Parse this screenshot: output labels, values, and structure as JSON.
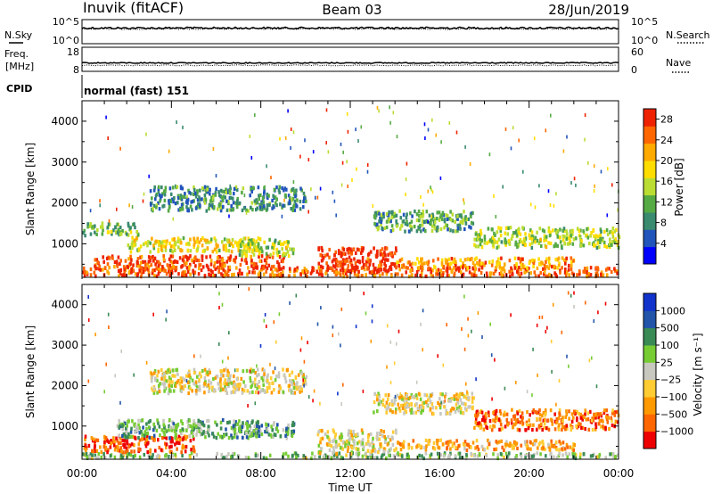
{
  "header": {
    "station": "Inuvik (fitACF)",
    "beam": "Beam 03",
    "date": "28/Jun/2019"
  },
  "noise_panel": {
    "left_label": "N.Sky",
    "right_label": "N.Search",
    "left_ticks": [
      "10^5",
      "10^0"
    ],
    "right_ticks": [
      "10^5",
      "10^0"
    ],
    "level": 0.65
  },
  "freq_panel": {
    "left_label_top": "Freq.",
    "left_label_bottom": "[MHz]",
    "left_ticks": [
      "18",
      "8"
    ],
    "right_label": "Nave",
    "right_ticks": [
      "60",
      "0"
    ],
    "freq_level": 0.35,
    "nave_level": 0.25
  },
  "cpid": {
    "label": "CPID",
    "program": "normal (fast) 151"
  },
  "chart_data": [
    {
      "type": "heatmap",
      "name": "power",
      "ylabel": "Slant Range [km]",
      "yticks": [
        "4000",
        "3000",
        "2000",
        "1000"
      ],
      "ytick_values": [
        4000,
        3000,
        2000,
        1000
      ],
      "ylim": [
        180,
        4500
      ],
      "colorbar_label": "Power [dB]",
      "colorbar_ticks": [
        "28",
        "24",
        "20",
        "16",
        "12",
        "8",
        "4"
      ],
      "colorbar_tick_values": [
        28,
        24,
        20,
        16,
        12,
        8,
        4
      ],
      "colorbar_range": [
        0,
        30
      ],
      "colors": [
        "#0000ff",
        "#2255bb",
        "#3a8a70",
        "#55aa44",
        "#bbdd33",
        "#ffdd00",
        "#ffaa00",
        "#ff6600",
        "#ee2200"
      ],
      "features": [
        {
          "t0": 0.0,
          "t1": 24.0,
          "r0": 200,
          "r1": 420,
          "level": 0.85
        },
        {
          "t0": 0.5,
          "t1": 9.0,
          "r0": 400,
          "r1": 700,
          "level": 0.9
        },
        {
          "t0": 2.0,
          "t1": 8.0,
          "r0": 800,
          "r1": 1150,
          "level": 0.6
        },
        {
          "t0": 0.0,
          "t1": 2.5,
          "r0": 1200,
          "r1": 1500,
          "level": 0.4
        },
        {
          "t0": 3.0,
          "t1": 10.0,
          "r0": 1800,
          "r1": 2400,
          "level": 0.3
        },
        {
          "t0": 10.5,
          "t1": 14.0,
          "r0": 300,
          "r1": 900,
          "level": 0.95
        },
        {
          "t0": 14.0,
          "t1": 22.0,
          "r0": 400,
          "r1": 650,
          "level": 0.75
        },
        {
          "t0": 13.0,
          "t1": 17.5,
          "r0": 1300,
          "r1": 1800,
          "level": 0.35
        },
        {
          "t0": 17.5,
          "t1": 24.0,
          "r0": 900,
          "r1": 1400,
          "level": 0.5
        },
        {
          "t0": 7.0,
          "t1": 9.5,
          "r0": 700,
          "r1": 1100,
          "level": 0.5
        }
      ]
    },
    {
      "type": "heatmap",
      "name": "velocity",
      "ylabel": "Slant Range [km]",
      "yticks": [
        "4000",
        "3000",
        "2000",
        "1000"
      ],
      "ytick_values": [
        4000,
        3000,
        2000,
        1000
      ],
      "ylim": [
        180,
        4500
      ],
      "xlabel": "Time UT",
      "xticks": [
        "00:00",
        "04:00",
        "08:00",
        "12:00",
        "16:00",
        "20:00",
        "00:00"
      ],
      "xtick_values": [
        0,
        4,
        8,
        12,
        16,
        20,
        24
      ],
      "xlim": [
        0,
        24
      ],
      "colorbar_label": "Velocity [m s⁻¹]",
      "colorbar_ticks": [
        "1000",
        "500",
        "100",
        "25",
        "−25",
        "−100",
        "−500",
        "−1000"
      ],
      "colorbar_tick_values": [
        1000,
        500,
        100,
        25,
        -25,
        -100,
        -500,
        -1000
      ],
      "colorbar_range": [
        -1250,
        1250
      ],
      "colors": [
        "#ee0000",
        "#ff6600",
        "#ff9900",
        "#ffcc33",
        "#c8c8c0",
        "#77cc33",
        "#3a8a55",
        "#2255aa",
        "#1133cc"
      ],
      "features": [
        {
          "t0": 0.0,
          "t1": 24.0,
          "r0": 200,
          "r1": 330,
          "level": 0.6
        },
        {
          "t0": 0.0,
          "t1": 5.0,
          "r0": 350,
          "r1": 750,
          "level": 0.15
        },
        {
          "t0": 1.5,
          "t1": 8.0,
          "r0": 700,
          "r1": 1150,
          "level": 0.65
        },
        {
          "t0": 3.0,
          "t1": 10.0,
          "r0": 1800,
          "r1": 2400,
          "level": 0.45
        },
        {
          "t0": 10.5,
          "t1": 14.0,
          "r0": 300,
          "r1": 900,
          "level": 0.45
        },
        {
          "t0": 13.0,
          "t1": 17.5,
          "r0": 1300,
          "r1": 1800,
          "level": 0.45
        },
        {
          "t0": 17.5,
          "t1": 24.0,
          "r0": 900,
          "r1": 1400,
          "level": 0.2
        },
        {
          "t0": 14.0,
          "t1": 22.0,
          "r0": 400,
          "r1": 650,
          "level": 0.3
        },
        {
          "t0": 7.0,
          "t1": 9.5,
          "r0": 700,
          "r1": 1100,
          "level": 0.7
        }
      ]
    }
  ]
}
